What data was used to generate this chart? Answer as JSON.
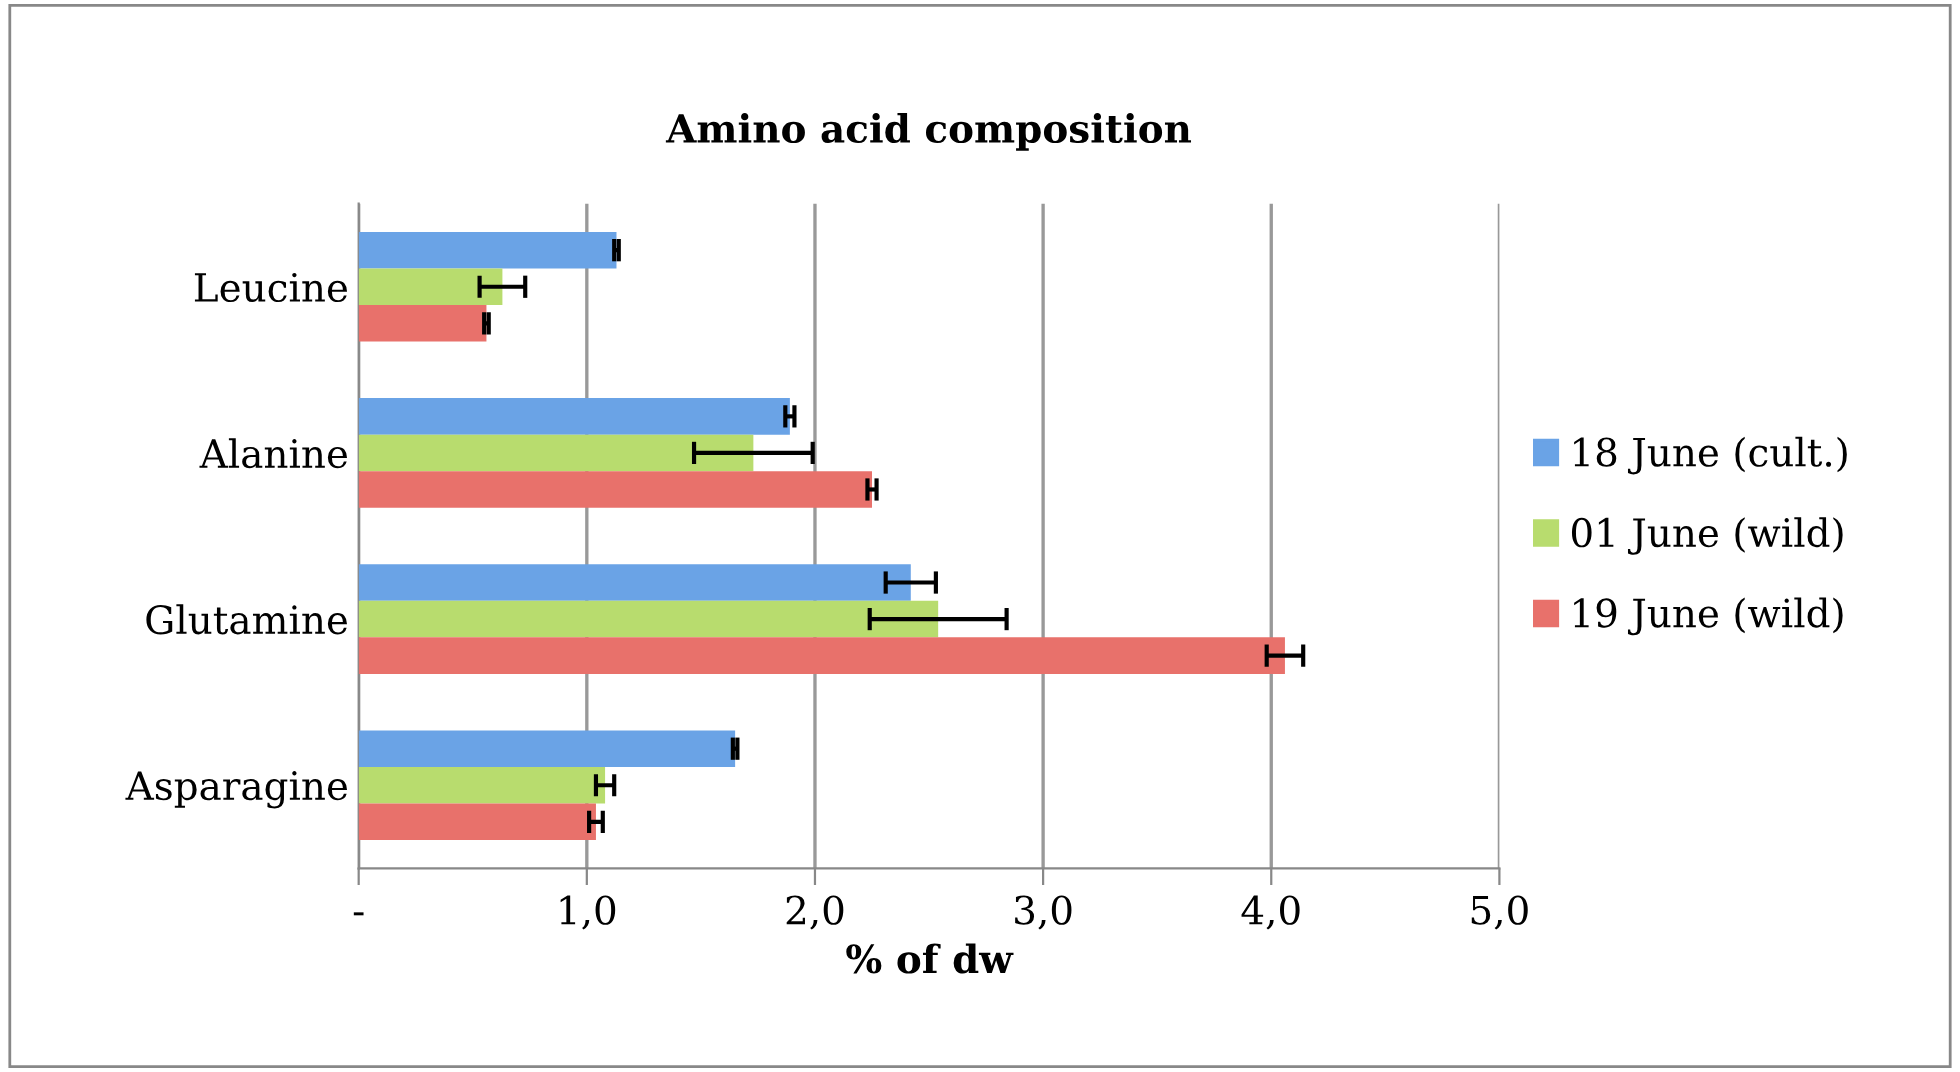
{
  "chart_data": {
    "type": "bar",
    "orientation": "horizontal",
    "title": "Amino acid composition",
    "xlabel": "% of dw",
    "categories": [
      "Leucine",
      "Alanine",
      "Glutamine",
      "Asparagine"
    ],
    "series": [
      {
        "name": "18 June (cult.)",
        "color": "#6aa3e6",
        "values": [
          1.13,
          1.89,
          2.42,
          1.65
        ],
        "errors": [
          0.01,
          0.02,
          0.11,
          0.01
        ]
      },
      {
        "name": "01 June (wild)",
        "color": "#b8dc6e",
        "values": [
          0.63,
          1.73,
          2.54,
          1.08
        ],
        "errors": [
          0.1,
          0.26,
          0.3,
          0.04
        ]
      },
      {
        "name": "19 June (wild)",
        "color": "#e8716b",
        "values": [
          0.56,
          2.25,
          4.06,
          1.04
        ],
        "errors": [
          0.01,
          0.02,
          0.08,
          0.03
        ]
      }
    ],
    "xlim": [
      0,
      5
    ],
    "xticks": [
      {
        "value": 0,
        "label": "-"
      },
      {
        "value": 1,
        "label": "1,0"
      },
      {
        "value": 2,
        "label": "2,0"
      },
      {
        "value": 3,
        "label": "3,0"
      },
      {
        "value": 4,
        "label": "4,0"
      },
      {
        "value": 5,
        "label": "5,0"
      }
    ],
    "grid": "x",
    "legend": "right"
  }
}
